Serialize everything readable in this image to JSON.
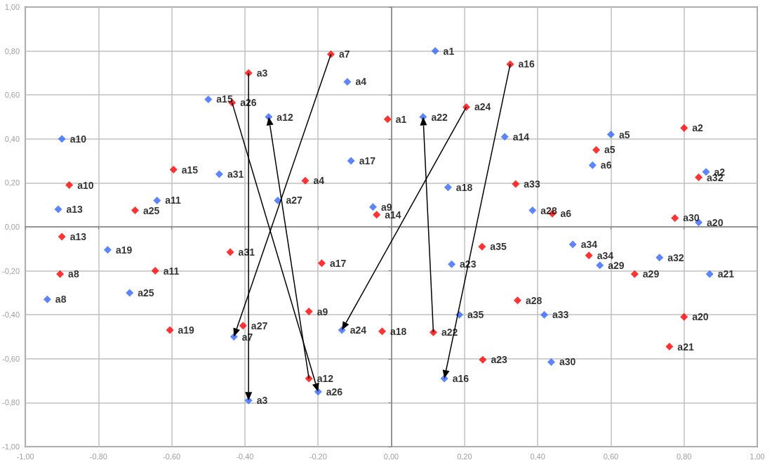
{
  "chart_data": {
    "type": "scatter",
    "marker": "diamond",
    "grid": true,
    "xlim": [
      -1,
      1
    ],
    "ylim": [
      -1,
      1
    ],
    "xticks": [
      {
        "value": -1,
        "label": "-1,00"
      },
      {
        "value": -0.8,
        "label": "-0,80"
      },
      {
        "value": -0.6,
        "label": "-0,60"
      },
      {
        "value": -0.4,
        "label": "-0,40"
      },
      {
        "value": -0.2,
        "label": "-0,20"
      },
      {
        "value": 0,
        "label": "0,00"
      },
      {
        "value": 0.2,
        "label": "0,20"
      },
      {
        "value": 0.4,
        "label": "0,40"
      },
      {
        "value": 0.6,
        "label": "0,60"
      },
      {
        "value": 0.8,
        "label": "0,80"
      },
      {
        "value": 1,
        "label": "1,00"
      }
    ],
    "yticks": [
      {
        "value": -1,
        "label": "-1,00"
      },
      {
        "value": -0.8,
        "label": "-0,80"
      },
      {
        "value": -0.6,
        "label": "-0,60"
      },
      {
        "value": -0.4,
        "label": "-0,40"
      },
      {
        "value": -0.2,
        "label": "-0,20"
      },
      {
        "value": 0,
        "label": "0,00"
      },
      {
        "value": 0.2,
        "label": "0,20"
      },
      {
        "value": 0.4,
        "label": "0,40"
      },
      {
        "value": 0.6,
        "label": "0,60"
      },
      {
        "value": 0.8,
        "label": "0,80"
      },
      {
        "value": 1,
        "label": "1,00"
      }
    ],
    "series": [
      {
        "color": "#3366ff",
        "x": [
          0.12,
          0.86,
          -0.39,
          -0.12,
          0.6,
          0.55,
          -0.43,
          -0.94,
          -0.05,
          -0.9,
          -0.64,
          -0.335,
          -0.91,
          0.31,
          -0.5,
          0.145,
          -0.11,
          0.155,
          -0.775,
          0.84,
          0.87,
          0.087,
          0.165,
          -0.135,
          -0.715,
          -0.2,
          -0.31,
          0.386,
          0.57,
          0.437,
          -0.47,
          0.733,
          0.418,
          0.496,
          0.186
        ],
        "values": [
          0.8,
          0.25,
          -0.79,
          0.66,
          0.42,
          0.28,
          -0.5,
          -0.33,
          0.09,
          0.4,
          0.12,
          0.5,
          0.08,
          0.41,
          0.58,
          -0.69,
          0.3,
          0.18,
          -0.105,
          0.02,
          -0.215,
          0.5,
          -0.17,
          -0.47,
          -0.3,
          -0.75,
          0.12,
          0.075,
          -0.175,
          -0.615,
          0.24,
          -0.14,
          -0.4,
          -0.08,
          -0.4
        ],
        "value_labels": [
          "a1",
          "a2",
          "a3",
          "a4",
          "a5",
          "a6",
          "a7",
          "a8",
          "a9",
          "a10",
          "a11",
          "a12",
          "a13",
          "a14",
          "a15",
          "a16",
          "a17",
          "a18",
          "a19",
          "a20",
          "a21",
          "a22",
          "a23",
          "a24",
          "a25",
          "a26",
          "a27",
          "a28",
          "a29",
          "a30",
          "a31",
          "a32",
          "a33",
          "a34",
          "a35"
        ]
      },
      {
        "color": "#ff0000",
        "x": [
          -0.01,
          0.8,
          -0.39,
          -0.235,
          0.56,
          0.44,
          -0.165,
          -0.905,
          -0.225,
          -0.88,
          -0.645,
          -0.225,
          -0.9,
          -0.04,
          -0.595,
          0.325,
          -0.19,
          -0.025,
          -0.605,
          0.8,
          0.76,
          0.115,
          0.25,
          0.205,
          -0.7,
          -0.435,
          -0.405,
          0.345,
          0.665,
          0.775,
          -0.44,
          0.84,
          0.34,
          0.54,
          0.248
        ],
        "values": [
          0.49,
          0.45,
          0.7,
          0.21,
          0.35,
          0.06,
          0.785,
          -0.215,
          -0.385,
          0.19,
          -0.2,
          -0.69,
          -0.045,
          0.055,
          0.26,
          0.74,
          -0.165,
          -0.475,
          -0.47,
          -0.41,
          -0.545,
          -0.48,
          -0.605,
          0.545,
          0.075,
          0.565,
          -0.45,
          -0.335,
          -0.215,
          0.04,
          -0.115,
          0.225,
          0.195,
          -0.13,
          -0.09
        ],
        "value_labels": [
          "a1",
          "a2",
          "a3",
          "a4",
          "a5",
          "a6",
          "a7",
          "a8",
          "a9",
          "a10",
          "a11",
          "a12",
          "a13",
          "a14",
          "a15",
          "a16",
          "a17",
          "a18",
          "a19",
          "a20",
          "a21",
          "a22",
          "a23",
          "a24",
          "a25",
          "a26",
          "a27",
          "a28",
          "a29",
          "a30",
          "a31",
          "a32",
          "a33",
          "a34",
          "a35"
        ]
      }
    ]
  }
}
